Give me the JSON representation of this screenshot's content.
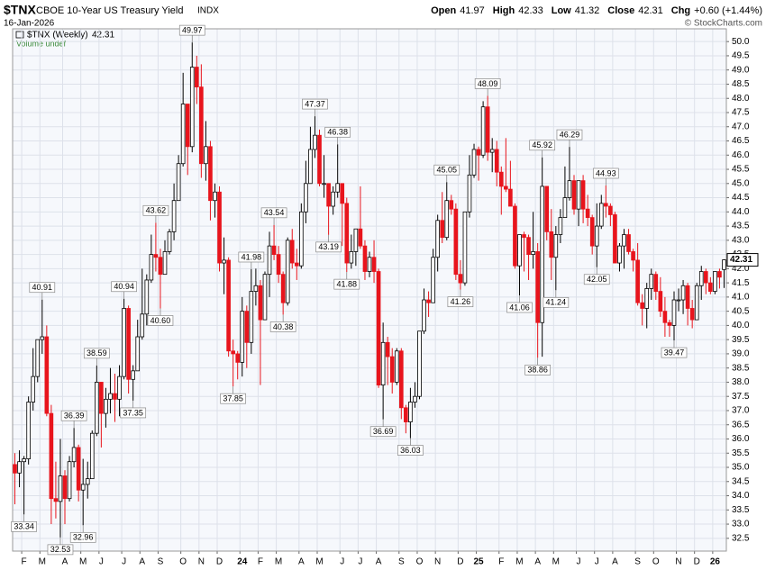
{
  "chart_data": {
    "type": "candlestick",
    "header": {
      "symbol": "$TNX",
      "name": "CBOE 10-Year US Treasury Yield",
      "exchange": "INDX",
      "date": "16-Jan-2026",
      "source": "© StockCharts.com",
      "quote": [
        {
          "label": "Open",
          "value": 41.97
        },
        {
          "label": "High",
          "value": 42.33
        },
        {
          "label": "Low",
          "value": 41.32
        },
        {
          "label": "Close",
          "value": 42.31
        },
        {
          "label": "Chg",
          "value": "+0.60 (+1.44%)"
        }
      ],
      "volume_note": "Volume undef"
    },
    "categories": [
      null,
      null,
      "F",
      null,
      null,
      null,
      "M",
      null,
      null,
      null,
      null,
      "A",
      null,
      null,
      null,
      "M",
      null,
      null,
      null,
      "J",
      null,
      null,
      null,
      null,
      "J",
      null,
      null,
      null,
      "A",
      null,
      null,
      null,
      "S",
      null,
      null,
      null,
      null,
      "O",
      null,
      null,
      null,
      "N",
      null,
      null,
      null,
      "D",
      null,
      null,
      null,
      null,
      "24",
      null,
      null,
      null,
      "F",
      null,
      null,
      null,
      "M",
      null,
      null,
      null,
      null,
      "A",
      null,
      null,
      null,
      "M",
      null,
      null,
      null,
      null,
      "J",
      null,
      null,
      null,
      "J",
      null,
      null,
      null,
      "A",
      null,
      null,
      null,
      null,
      "S",
      null,
      null,
      null,
      "O",
      null,
      null,
      null,
      "N",
      null,
      null,
      null,
      null,
      "D",
      null,
      null,
      null,
      "25",
      null,
      null,
      null,
      null,
      "F",
      null,
      null,
      null,
      "M",
      null,
      null,
      null,
      "A",
      null,
      null,
      null,
      "M",
      null,
      null,
      null,
      null,
      "J",
      null,
      null,
      null,
      "J",
      null,
      null,
      null,
      "A",
      null,
      null,
      null,
      null,
      "S",
      null,
      null,
      null,
      "O",
      null,
      null,
      null,
      null,
      "N",
      null,
      null,
      null,
      "D",
      null,
      null,
      null,
      "26",
      null,
      null
    ],
    "series": [
      {
        "name": "$TNX (Weekly)",
        "up_color": "#ffffff",
        "up_stroke": "#000000",
        "down_color": "#e8141c",
        "open": [
          35.1,
          34.8,
          35.2,
          35.3,
          37.3,
          38.2,
          39.5,
          39.6,
          36.9,
          33.9,
          33.8,
          34.7,
          33.9,
          35.2,
          35.7,
          34.2,
          34.4,
          34.6,
          36.2,
          38.0,
          36.9,
          37.4,
          37.6,
          37.4,
          38.2,
          40.6,
          38.1,
          38.4,
          39.6,
          40.4,
          41.6,
          42.5,
          42.4,
          41.8,
          42.6,
          43.3,
          44.4,
          45.7,
          47.8,
          46.3,
          49.1,
          48.4,
          45.7,
          46.3,
          44.4,
          44.7,
          42.2,
          42.3,
          39.1,
          39.0,
          38.7,
          40.5,
          39.4,
          41.2,
          41.4,
          40.2,
          41.8,
          42.8,
          42.5,
          41.8,
          40.8,
          43.0,
          42.2,
          42.1,
          44.0,
          45.0,
          46.2,
          46.7,
          45.0,
          45.0,
          44.2,
          44.7,
          45.0,
          44.3,
          42.2,
          42.6,
          43.4,
          42.8,
          41.9,
          42.4,
          41.9,
          37.9,
          39.4,
          38.9,
          38.0,
          39.1,
          37.1,
          36.6,
          37.3,
          37.5,
          39.8,
          40.9,
          40.8,
          42.4,
          43.7,
          43.1,
          44.4,
          44.1,
          41.8,
          41.5,
          44.0,
          45.3,
          46.2,
          46.0,
          47.7,
          46.1,
          46.2,
          45.4,
          44.9,
          44.8,
          44.2,
          42.1,
          43.2,
          43.1,
          42.5,
          42.6,
          40.1,
          44.9,
          43.3,
          42.4,
          43.2,
          43.8,
          44.5,
          45.1,
          44.1,
          45.1,
          44.1,
          43.8,
          42.8,
          43.5,
          44.3,
          44.2,
          43.9,
          42.2,
          42.8,
          43.2,
          42.6,
          42.3,
          40.8,
          40.6,
          41.3,
          41.8,
          41.2,
          40.5,
          40.1,
          40.0,
          40.9,
          40.9,
          41.4,
          40.6,
          40.2,
          41.4,
          41.9,
          41.5,
          41.2,
          41.9,
          41.97
        ],
        "high": [
          35.5,
          35.6,
          35.4,
          37.5,
          39.2,
          39.5,
          40.91,
          40.0,
          37.2,
          35.2,
          36.0,
          34.9,
          35.4,
          36.39,
          35.8,
          35.3,
          35.2,
          36.3,
          38.59,
          38.0,
          37.8,
          38.5,
          38.3,
          38.6,
          40.94,
          40.7,
          38.6,
          40.2,
          42.0,
          41.8,
          43.2,
          43.62,
          42.7,
          43.0,
          43.4,
          45.0,
          46.0,
          48.9,
          47.8,
          49.97,
          49.5,
          49.2,
          47.2,
          46.5,
          45.0,
          44.9,
          43.1,
          42.4,
          39.5,
          39.1,
          41.0,
          40.7,
          41.98,
          42.0,
          41.6,
          41.9,
          43.3,
          43.54,
          42.8,
          41.9,
          43.1,
          43.4,
          42.7,
          44.3,
          45.8,
          47.0,
          47.37,
          46.9,
          46.0,
          45.0,
          44.9,
          46.38,
          45.0,
          44.5,
          43.2,
          43.4,
          44.9,
          43.0,
          42.6,
          43.0,
          42.0,
          40.1,
          39.6,
          39.2,
          39.2,
          39.2,
          37.2,
          37.8,
          38.0,
          39.8,
          41.3,
          41.2,
          42.7,
          43.9,
          44.7,
          45.05,
          44.6,
          44.3,
          42.3,
          44.0,
          46.0,
          46.4,
          46.3,
          47.9,
          48.09,
          46.6,
          46.5,
          45.6,
          46.6,
          45.8,
          44.3,
          43.2,
          43.3,
          43.2,
          44.0,
          42.9,
          45.92,
          44.9,
          44.1,
          43.5,
          44.1,
          45.6,
          46.29,
          45.3,
          45.1,
          45.3,
          44.6,
          43.9,
          44.3,
          44.6,
          44.93,
          44.3,
          44.0,
          42.9,
          43.4,
          43.4,
          42.7,
          42.9,
          41.1,
          41.5,
          42.0,
          41.9,
          41.7,
          41.0,
          40.2,
          41.2,
          41.3,
          41.6,
          41.5,
          40.9,
          41.5,
          42.1,
          42.0,
          41.7,
          41.9,
          42.0,
          42.33
        ],
        "low": [
          33.7,
          34.3,
          33.34,
          35.1,
          37.0,
          38.0,
          39.0,
          36.8,
          33.0,
          33.2,
          32.53,
          33.0,
          33.8,
          35.0,
          33.8,
          32.96,
          33.9,
          34.6,
          36.1,
          35.7,
          36.4,
          36.9,
          36.6,
          36.8,
          38.1,
          37.6,
          37.35,
          38.4,
          39.5,
          40.0,
          41.5,
          41.9,
          40.6,
          41.8,
          42.5,
          43.0,
          44.4,
          45.6,
          45.3,
          46.1,
          47.8,
          45.2,
          45.1,
          43.7,
          43.8,
          41.9,
          41.1,
          38.9,
          37.85,
          38.1,
          38.2,
          38.5,
          39.0,
          40.7,
          37.9,
          40.2,
          41.0,
          42.3,
          41.5,
          40.38,
          40.7,
          42.0,
          41.6,
          42.0,
          43.6,
          45.0,
          45.9,
          44.9,
          44.5,
          43.19,
          43.9,
          44.5,
          42.8,
          41.88,
          42.0,
          42.1,
          42.7,
          41.6,
          41.7,
          41.5,
          37.8,
          36.69,
          37.9,
          37.6,
          37.9,
          36.7,
          36.2,
          36.03,
          37.1,
          37.4,
          39.7,
          40.3,
          40.8,
          41.9,
          42.9,
          43.0,
          43.9,
          41.6,
          41.26,
          41.4,
          43.8,
          45.2,
          45.1,
          45.9,
          45.8,
          45.4,
          44.9,
          43.9,
          44.7,
          44.2,
          42.0,
          41.06,
          41.9,
          41.6,
          42.0,
          38.86,
          38.9,
          43.0,
          41.6,
          41.24,
          42.9,
          43.8,
          44.4,
          43.9,
          43.5,
          43.6,
          43.5,
          42.5,
          42.05,
          43.4,
          43.8,
          43.5,
          42.2,
          41.9,
          42.0,
          42.5,
          41.9,
          40.7,
          40.0,
          39.9,
          40.9,
          40.9,
          40.3,
          39.6,
          39.6,
          39.47,
          40.5,
          40.4,
          40.0,
          39.9,
          40.2,
          40.9,
          41.1,
          41.1,
          41.1,
          41.3,
          41.32
        ],
        "close": [
          34.8,
          35.2,
          35.3,
          37.3,
          38.2,
          39.5,
          39.6,
          36.9,
          33.9,
          33.8,
          34.7,
          33.9,
          35.2,
          35.7,
          34.2,
          34.4,
          34.6,
          36.2,
          38.0,
          36.9,
          37.4,
          37.6,
          37.4,
          38.2,
          40.6,
          38.1,
          38.4,
          39.6,
          40.4,
          41.6,
          42.5,
          42.4,
          41.8,
          42.6,
          43.3,
          44.4,
          45.7,
          47.8,
          46.3,
          49.1,
          48.4,
          45.7,
          46.3,
          44.4,
          44.7,
          42.2,
          42.3,
          39.1,
          39.0,
          38.7,
          40.5,
          39.4,
          41.2,
          41.4,
          40.2,
          41.8,
          42.8,
          42.5,
          41.8,
          40.8,
          43.0,
          42.2,
          42.1,
          44.0,
          45.0,
          46.2,
          46.7,
          45.0,
          45.0,
          44.2,
          44.7,
          45.0,
          44.3,
          42.2,
          42.6,
          43.4,
          42.8,
          41.9,
          42.4,
          41.9,
          37.9,
          39.4,
          38.9,
          38.0,
          39.1,
          37.1,
          36.6,
          37.3,
          37.5,
          39.8,
          40.9,
          40.8,
          42.4,
          43.7,
          43.1,
          44.4,
          44.1,
          41.8,
          41.5,
          44.0,
          45.3,
          46.2,
          46.0,
          47.7,
          46.1,
          46.2,
          45.4,
          44.9,
          44.8,
          44.2,
          42.1,
          43.2,
          43.1,
          42.5,
          42.6,
          40.1,
          44.9,
          43.3,
          42.4,
          43.2,
          43.8,
          44.5,
          45.1,
          44.1,
          45.1,
          44.1,
          43.8,
          42.8,
          43.5,
          44.3,
          44.2,
          43.9,
          42.2,
          42.8,
          43.2,
          42.6,
          42.3,
          40.8,
          40.6,
          41.3,
          41.8,
          41.2,
          40.5,
          40.1,
          40.0,
          40.9,
          40.9,
          41.4,
          40.6,
          40.2,
          41.4,
          41.9,
          41.5,
          41.2,
          41.9,
          41.7,
          42.31
        ],
        "high_labels": {
          "6": "40.91",
          "13": "36.39",
          "18": "38.59",
          "24": "40.94",
          "31": "43.62",
          "39": "49.97",
          "52": "41.98",
          "57": "43.54",
          "66": "47.37",
          "71": "46.38",
          "95": "45.05",
          "104": "48.09",
          "116": "45.92",
          "122": "46.29",
          "130": "44.93"
        },
        "low_labels": {
          "2": "33.34",
          "10": "32.53",
          "15": "32.96",
          "26": "37.35",
          "32": "40.60",
          "48": "37.85",
          "59": "40.38",
          "69": "43.19",
          "73": "41.88",
          "81": "36.69",
          "87": "36.03",
          "98": "41.26",
          "111": "41.06",
          "115": "38.86",
          "119": "41.24",
          "128": "42.05",
          "145": "39.47"
        }
      }
    ],
    "ylim": [
      32.05,
      50.45
    ],
    "yticks": [
      32.5,
      {
        "value": 33,
        "label": "33.0"
      },
      33.5,
      {
        "value": 34,
        "label": "34.0"
      },
      34.5,
      {
        "value": 35,
        "label": "35.0"
      },
      35.5,
      {
        "value": 36,
        "label": "36.0"
      },
      36.5,
      {
        "value": 37,
        "label": "37.0"
      },
      37.5,
      {
        "value": 38,
        "label": "38.0"
      },
      38.5,
      {
        "value": 39,
        "label": "39.0"
      },
      39.5,
      {
        "value": 40,
        "label": "40.0"
      },
      40.5,
      {
        "value": 41,
        "label": "41.0"
      },
      41.5,
      {
        "value": 42,
        "label": "42.0"
      },
      42.5,
      {
        "value": 43,
        "label": "43.0"
      },
      43.5,
      {
        "value": 44,
        "label": "44.0"
      },
      44.5,
      {
        "value": 45,
        "label": "45.0"
      },
      45.5,
      {
        "value": 46,
        "label": "46.0"
      },
      46.5,
      {
        "value": 47,
        "label": "47.0"
      },
      47.5,
      {
        "value": 48,
        "label": "48.0"
      },
      48.5,
      {
        "value": 49,
        "label": "49.0"
      },
      49.5,
      {
        "value": 50,
        "label": "50.0"
      }
    ],
    "grid": true
  }
}
